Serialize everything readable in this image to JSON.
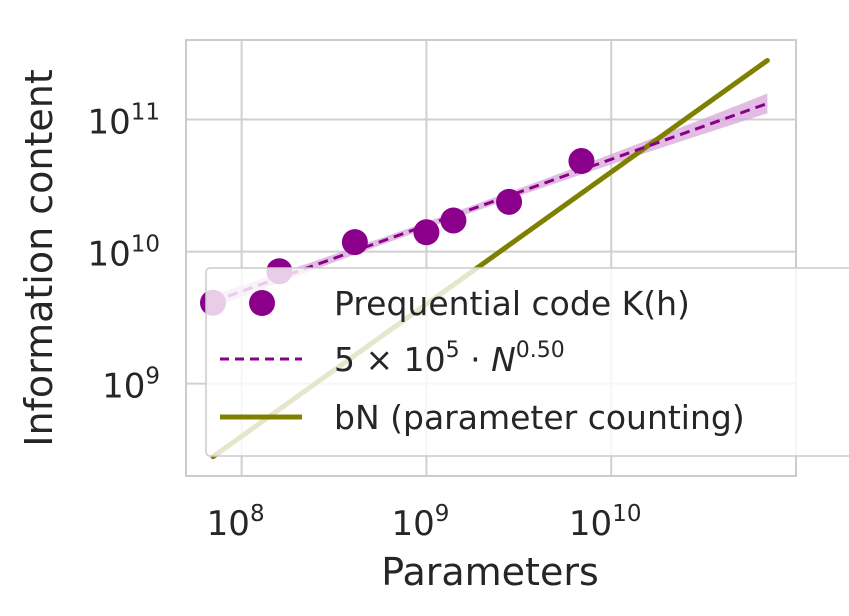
{
  "chart_data": {
    "type": "scatter",
    "xscale": "log",
    "yscale": "log",
    "xlabel": "Parameters",
    "ylabel": "Information content",
    "xlim": [
      50000000,
      100000000000
    ],
    "ylim": [
      200000000,
      400000000000
    ],
    "xticks": [
      {
        "value": 100000000,
        "base": "10",
        "exp": "8"
      },
      {
        "value": 1000000000,
        "base": "10",
        "exp": "9"
      },
      {
        "value": 10000000000,
        "base": "10",
        "exp": "10"
      }
    ],
    "yticks": [
      {
        "value": 1000000000,
        "base": "10",
        "exp": "9"
      },
      {
        "value": 10000000000,
        "base": "10",
        "exp": "10"
      },
      {
        "value": 100000000000,
        "base": "10",
        "exp": "11"
      }
    ],
    "grid": true,
    "series": [
      {
        "name": "Prequential code K(h)",
        "kind": "scatter",
        "color": "#8b008b",
        "points": [
          {
            "x": 70000000,
            "y": 4100000000
          },
          {
            "x": 160000000,
            "y": 7100000000
          },
          {
            "x": 410000000,
            "y": 11800000000
          },
          {
            "x": 1000000000,
            "y": 14000000000
          },
          {
            "x": 1400000000,
            "y": 17200000000
          },
          {
            "x": 2800000000,
            "y": 23800000000
          },
          {
            "x": 6900000000,
            "y": 48500000000
          }
        ]
      },
      {
        "name": "fit",
        "kind": "dashed-line",
        "color": "#8b008b",
        "band_color": "#d7a6da",
        "coef": 500000,
        "exponent": 0.5,
        "x_range": [
          70000000,
          70000000000
        ]
      },
      {
        "name": "bN (parameter counting)",
        "kind": "line",
        "color": "#808000",
        "slope": 4,
        "x_range": [
          70000000,
          70000000000
        ]
      }
    ],
    "legend": {
      "placement": "lower-right",
      "entries": [
        {
          "label": "Prequential code K(h)"
        },
        {
          "label_base": "5 × 10",
          "label_exp1": "5",
          "label_mid": " · ",
          "label_var": "N",
          "label_exp2": "0.50"
        },
        {
          "label": "bN (parameter counting)"
        }
      ]
    }
  }
}
